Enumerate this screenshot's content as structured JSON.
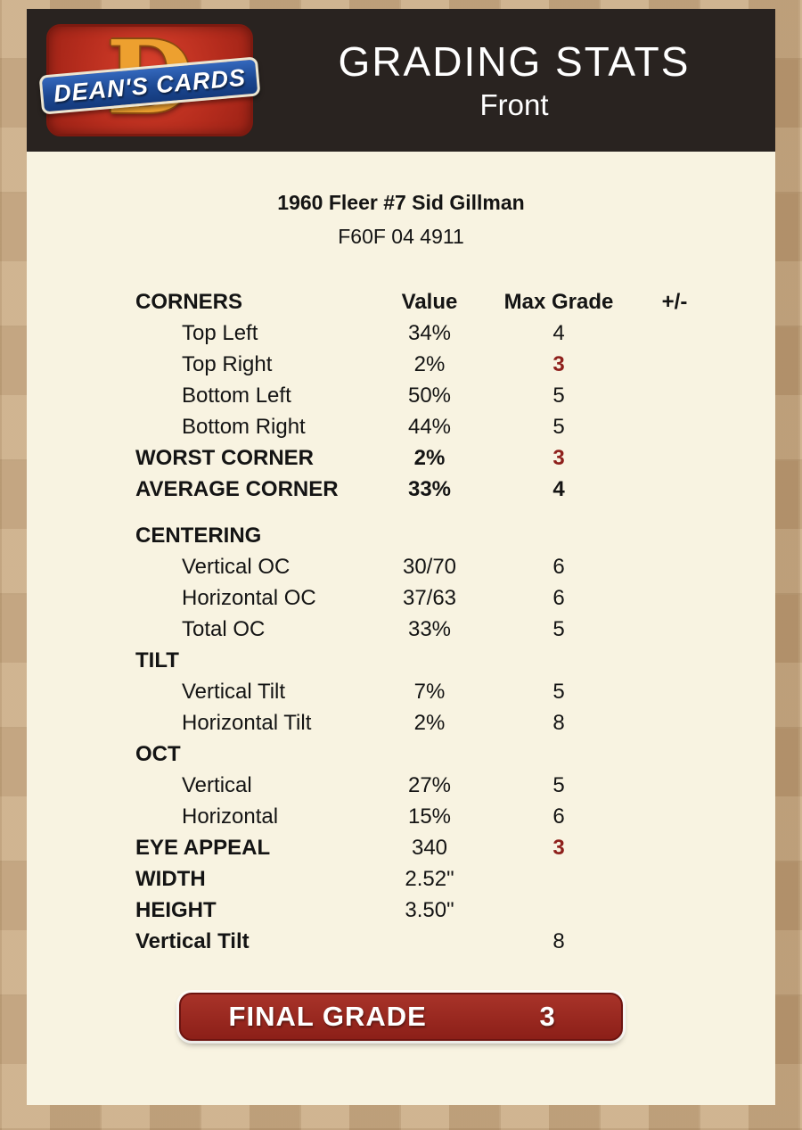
{
  "header": {
    "logo_text": "DEAN'S CARDS",
    "logo_letter": "D",
    "title": "GRADING STATS",
    "subtitle": "Front"
  },
  "card_info": {
    "title": "1960 Fleer #7 Sid Gillman",
    "code": "F60F 04 4911"
  },
  "table": {
    "header": {
      "label": "CORNERS",
      "value": "Value",
      "grade": "Max Grade",
      "pm": "+/-"
    },
    "rows": [
      {
        "label": "Top Left",
        "value": "34%",
        "grade": "4",
        "indent": true
      },
      {
        "label": "Top Right",
        "value": "2%",
        "grade": "3",
        "indent": true,
        "grade_red": true
      },
      {
        "label": "Bottom Left",
        "value": "50%",
        "grade": "5",
        "indent": true
      },
      {
        "label": "Bottom Right",
        "value": "44%",
        "grade": "5",
        "indent": true
      },
      {
        "label": "WORST CORNER",
        "value": "2%",
        "grade": "3",
        "bold": true,
        "value_bold": true,
        "grade_red": true
      },
      {
        "label": "AVERAGE CORNER",
        "value": "33%",
        "grade": "4",
        "bold": true,
        "value_bold": true
      },
      {
        "label": "CENTERING",
        "bold": true,
        "section": true,
        "gap_before": true
      },
      {
        "label": "Vertical OC",
        "value": "30/70",
        "grade": "6",
        "indent": true
      },
      {
        "label": "Horizontal OC",
        "value": "37/63",
        "grade": "6",
        "indent": true
      },
      {
        "label": "Total OC",
        "value": "33%",
        "grade": "5",
        "indent": true
      },
      {
        "label": "TILT",
        "bold": true,
        "section": true
      },
      {
        "label": "Vertical Tilt",
        "value": "7%",
        "grade": "5",
        "indent": true
      },
      {
        "label": "Horizontal Tilt",
        "value": "2%",
        "grade": "8",
        "indent": true
      },
      {
        "label": "OCT",
        "bold": true,
        "section": true
      },
      {
        "label": "Vertical",
        "value": "27%",
        "grade": "5",
        "indent": true
      },
      {
        "label": "Horizontal",
        "value": "15%",
        "grade": "6",
        "indent": true
      },
      {
        "label": "EYE APPEAL",
        "value": "340",
        "grade": "3",
        "bold": true,
        "grade_red": true
      },
      {
        "label": "WIDTH",
        "value": "2.52\"",
        "bold": true
      },
      {
        "label": "HEIGHT",
        "value": "3.50\"",
        "bold": true
      },
      {
        "label": "Vertical Tilt",
        "value": "",
        "grade": "8",
        "bold": true
      }
    ]
  },
  "final_grade": {
    "label": "FINAL GRADE",
    "value": "3"
  },
  "colors": {
    "accent_red": "#8e1f1b",
    "panel_cream": "#f8f3e1",
    "header_dark": "#292320",
    "background_tan": "#c2a179",
    "final_grade_red": "#8c1f18",
    "logo_red": "#b52c1d",
    "logo_blue": "#1c4892",
    "logo_gold": "#eda02f"
  }
}
